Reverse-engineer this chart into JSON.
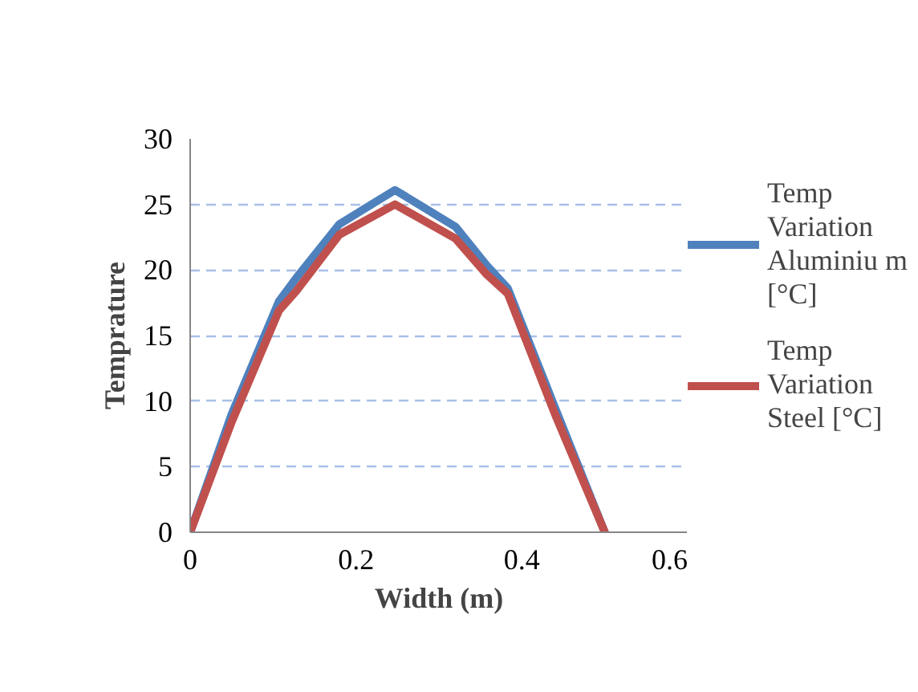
{
  "chart_data": {
    "type": "line",
    "xlabel": "Width (m)",
    "ylabel": "Temprature",
    "x": [
      0,
      0.05,
      0.107,
      0.128,
      0.18,
      0.247,
      0.32,
      0.357,
      0.383,
      0.44,
      0.5
    ],
    "series": [
      {
        "name": "Temp Variation Aluminiu m  [°C]",
        "color": "#4f81bd",
        "values": [
          0,
          9.0,
          17.6,
          19.4,
          23.5,
          26.1,
          23.3,
          20.4,
          18.6,
          9.5,
          0
        ]
      },
      {
        "name": "Temp Variation Steel [°C]",
        "color": "#c0504d",
        "values": [
          0,
          8.4,
          16.9,
          18.4,
          22.7,
          25.0,
          22.4,
          19.7,
          18.2,
          9.0,
          0
        ]
      }
    ],
    "xlim": [
      0,
      0.6
    ],
    "xticks": [
      0,
      0.2,
      0.4,
      0.6
    ],
    "ylim": [
      0,
      30
    ],
    "yticks": [
      0,
      5,
      10,
      15,
      20,
      25,
      30
    ],
    "grid": "y",
    "legend": "right",
    "marker": "none",
    "line_style": "solid"
  }
}
